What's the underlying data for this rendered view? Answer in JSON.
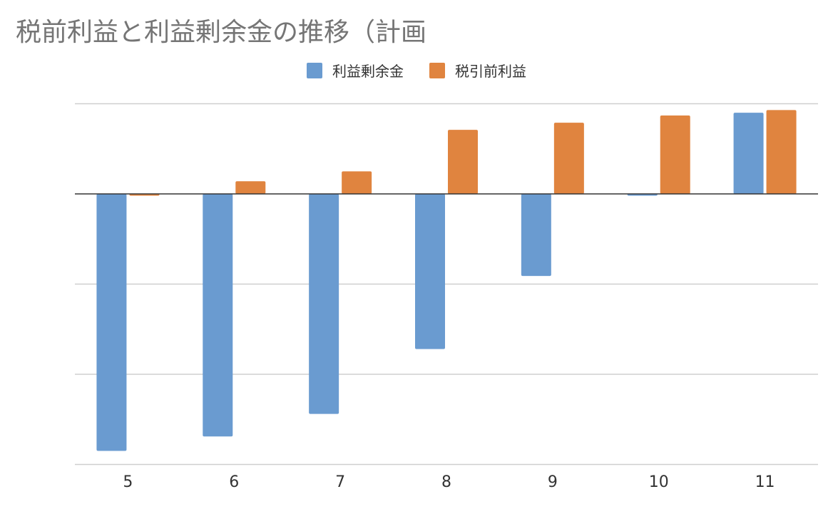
{
  "chart_data": {
    "type": "bar",
    "title": "税前利益と利益剰余金の推移（計画",
    "categories": [
      "5",
      "6",
      "7",
      "8",
      "9",
      "10",
      "11"
    ],
    "series": [
      {
        "name": "利益剰余金",
        "values": [
          -285,
          -269,
          -244,
          -172,
          -91,
          -2,
          90
        ]
      },
      {
        "name": "税引前利益",
        "values": [
          -2,
          14,
          25,
          71,
          79,
          87,
          93
        ]
      }
    ],
    "colors": [
      "#6a9bd0",
      "#e0843f"
    ],
    "ylim": [
      -300,
      100
    ],
    "gridlines": [
      -300,
      -200,
      -100,
      0,
      100
    ],
    "xlabel": "",
    "ylabel": "",
    "legend_position": "top",
    "grid": true
  }
}
